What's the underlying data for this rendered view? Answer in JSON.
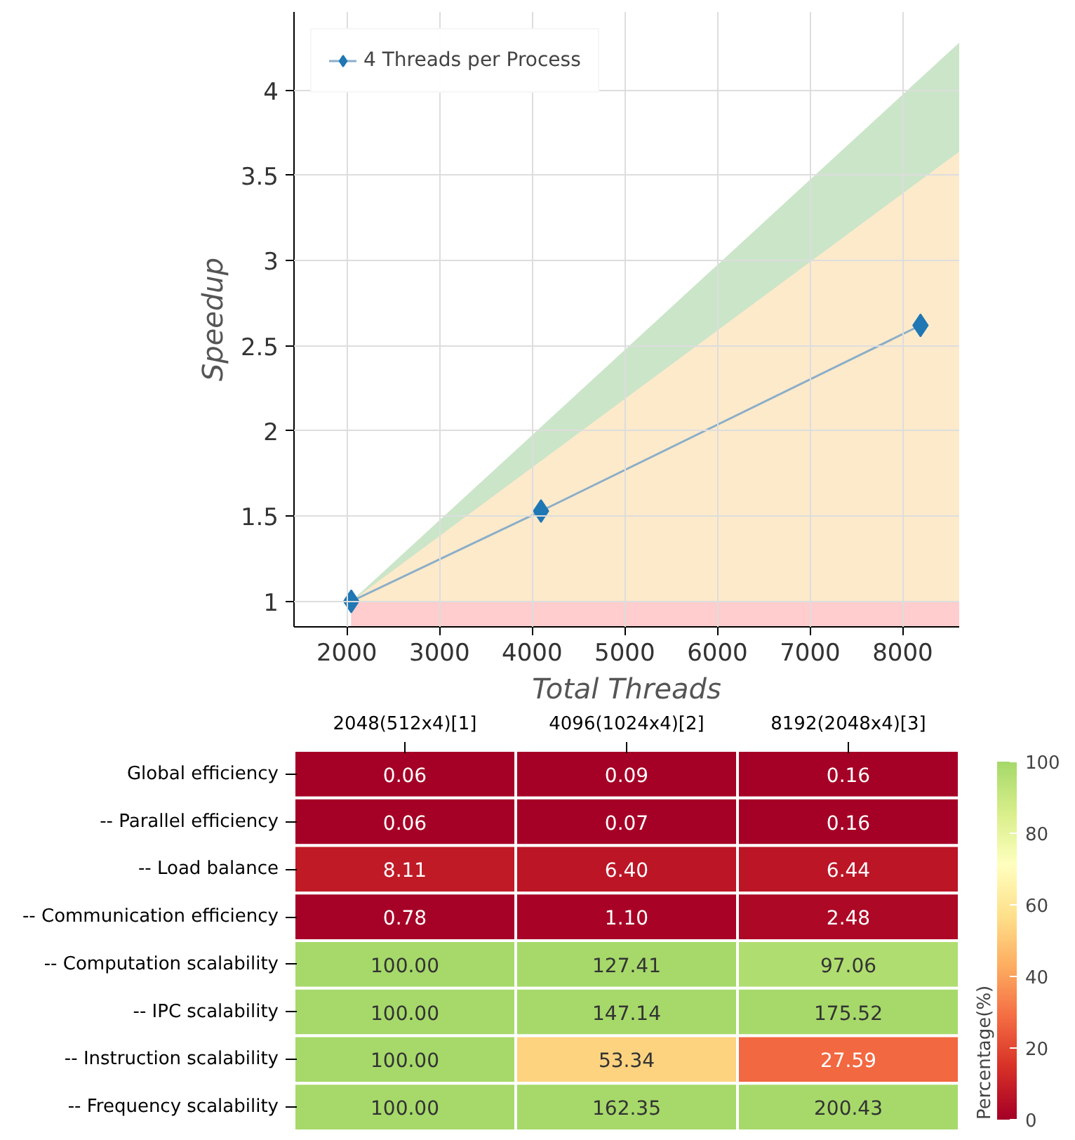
{
  "chart_data": [
    {
      "type": "line",
      "xlabel": "Total Threads",
      "ylabel": "Speedup",
      "xlim": [
        1430,
        8610
      ],
      "ylim": [
        0.85,
        4.46
      ],
      "xticks": [
        2000,
        3000,
        4000,
        5000,
        6000,
        7000,
        8000
      ],
      "yticks": [
        {
          "value": 1,
          "label": "1"
        },
        1.5,
        {
          "value": 2,
          "label": "2"
        },
        2.5,
        {
          "value": 3,
          "label": "3"
        },
        3.5,
        {
          "value": 4,
          "label": "4"
        }
      ],
      "grid": true,
      "legend": "top left",
      "line_style": "solid",
      "series": [
        {
          "type": "area",
          "color": "#cbe5c9",
          "x": [
            2048,
            8610
          ],
          "values": [
            1,
            4.28
          ]
        },
        {
          "type": "area",
          "color": "#fdeacb",
          "x": [
            2048,
            8610
          ],
          "values": [
            1,
            3.64
          ]
        },
        {
          "type": "area",
          "color": "#ffcdcd",
          "x": [
            2048,
            8610
          ],
          "values": [
            1,
            1
          ]
        },
        {
          "type": "line",
          "name": "4 Threads per Process",
          "color": "#1f77b4",
          "x": [
            2048,
            4096,
            8192
          ],
          "values": [
            1,
            1.53,
            2.62
          ],
          "marker": "diamond"
        }
      ]
    },
    {
      "type": "heatmap",
      "clabel": "Percentage(%)",
      "clim": [
        0,
        100
      ],
      "cticks": [
        0,
        20,
        40,
        60,
        80,
        100
      ],
      "categories": [
        "2048(512x4)[1]",
        "4096(1024x4)[2]",
        "8192(2048x4)[3]"
      ],
      "y_categories": [
        "Global efficiency",
        "-- Parallel efficiency",
        "   -- Load balance",
        "   -- Communication efficiency",
        "-- Computation scalability",
        "   -- IPC scalability",
        "   -- Instruction scalability",
        "   -- Frequency scalability"
      ],
      "cells": [
        [
          0.06,
          0.09,
          0.16
        ],
        [
          0.06,
          0.07,
          0.16
        ],
        [
          8.11,
          6.4,
          6.44
        ],
        [
          0.78,
          1.1,
          2.48
        ],
        [
          100,
          127.41,
          97.06
        ],
        [
          100,
          147.14,
          175.52
        ],
        [
          100,
          53.34,
          27.59
        ],
        [
          100,
          162.35,
          200.43
        ]
      ],
      "cell_labels": [
        [
          "0.06",
          "0.09",
          "0.16"
        ],
        [
          "0.06",
          "0.07",
          "0.16"
        ],
        [
          "8.11",
          "6.40",
          "6.44"
        ],
        [
          "0.78",
          "1.10",
          "2.48"
        ],
        [
          "100.00",
          "127.41",
          "97.06"
        ],
        [
          "100.00",
          "147.14",
          "175.52"
        ],
        [
          "100.00",
          "53.34",
          "27.59"
        ],
        [
          "100.00",
          "162.35",
          "200.43"
        ]
      ]
    }
  ]
}
